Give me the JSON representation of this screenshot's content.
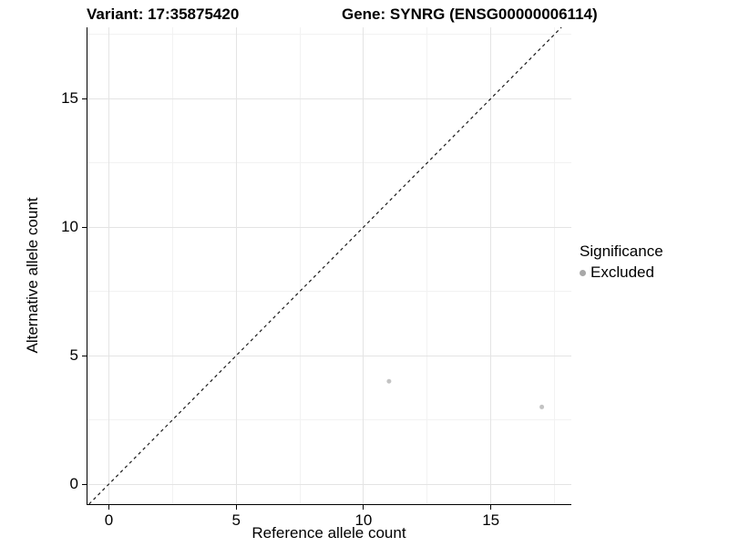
{
  "titles": {
    "variant": "Variant: 17:35875420",
    "gene": "Gene: SYNRG (ENSG00000006114)"
  },
  "axes": {
    "x": {
      "label": "Reference allele count",
      "tick_labels": [
        "0",
        "5",
        "10",
        "15"
      ]
    },
    "y": {
      "label": "Alternative allele count",
      "tick_labels": [
        "0",
        "5",
        "10",
        "15"
      ]
    }
  },
  "legend": {
    "title": "Significance",
    "items": [
      {
        "label": "Excluded",
        "swatch": "circle-icon",
        "color": "#a8a8a8"
      }
    ]
  },
  "colors": {
    "point": "#c3c3c3",
    "legend_dot": "#a8a8a8",
    "grid_major": "#e4e4e4",
    "grid_minor": "#f2f2f2",
    "axis_line": "#000000",
    "reference_line": "#1a1a1a",
    "background": "#ffffff"
  },
  "chart_data": {
    "type": "scatter",
    "title": "Variant: 17:35875420   Gene: SYNRG (ENSG00000006114)",
    "xlabel": "Reference allele count",
    "ylabel": "Alternative allele count",
    "xlim": [
      -0.84,
      18.16
    ],
    "ylim": [
      -0.78,
      17.77
    ],
    "x_ticks": [
      0,
      5,
      10,
      15
    ],
    "y_ticks": [
      0,
      5,
      10,
      15
    ],
    "x_minor_ticks": [
      2.5,
      7.5,
      12.5,
      17.5
    ],
    "y_minor_ticks": [
      2.5,
      7.5,
      12.5,
      17.5
    ],
    "grid": "major+minor",
    "legend_position": "right",
    "point_radius_px": 2.5,
    "series": [
      {
        "name": "Excluded",
        "color": "#c3c3c3",
        "points": [
          {
            "x": 11,
            "y": 4
          },
          {
            "x": 17,
            "y": 3
          }
        ]
      }
    ],
    "reference_line": {
      "type": "identity",
      "slope": 1,
      "intercept": 0,
      "style": "dashed"
    }
  }
}
